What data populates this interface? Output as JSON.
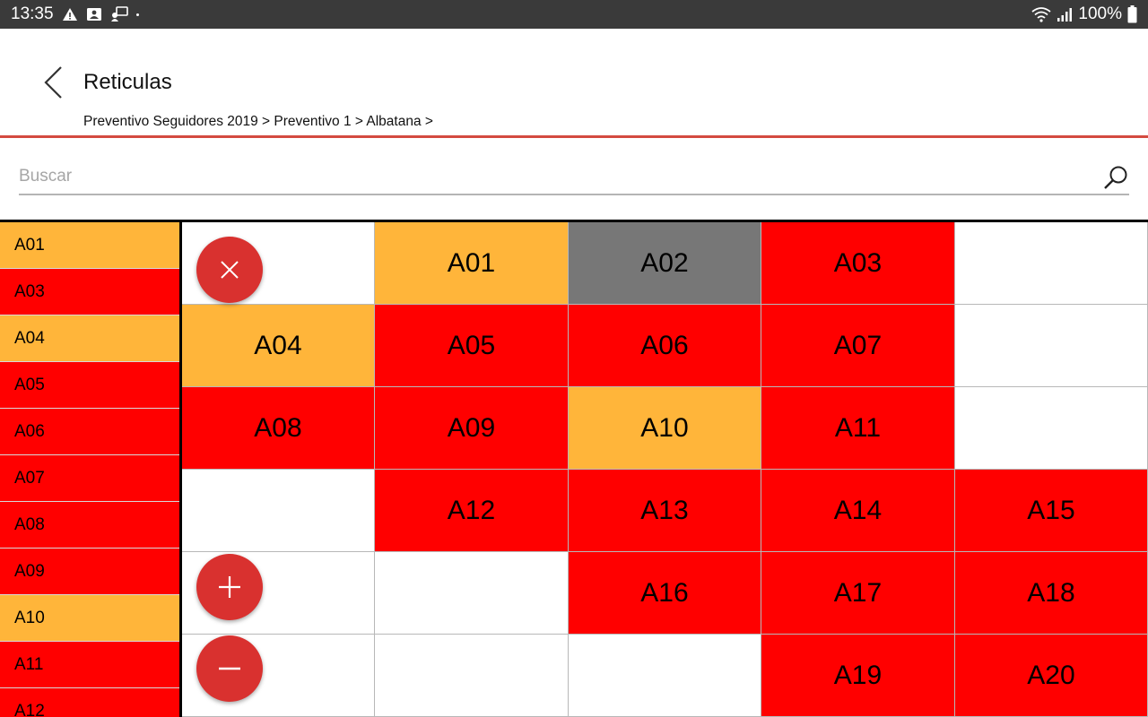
{
  "statusbar": {
    "time": "13:35",
    "battery": "100%"
  },
  "header": {
    "title": "Reticulas",
    "breadcrumb": "Preventivo Seguidores 2019 > Preventivo 1 > Albatana >"
  },
  "search": {
    "placeholder": "Buscar",
    "value": ""
  },
  "colors": {
    "orange": "#ffb53a",
    "red": "#ff0000",
    "gray": "#777777",
    "white": "#ffffff",
    "accent": "#d44a40",
    "fab": "#d9312f"
  },
  "sidebar": {
    "items": [
      {
        "label": "A01",
        "status": "orange"
      },
      {
        "label": "A03",
        "status": "red"
      },
      {
        "label": "A04",
        "status": "orange"
      },
      {
        "label": "A05",
        "status": "red"
      },
      {
        "label": "A06",
        "status": "red"
      },
      {
        "label": "A07",
        "status": "red"
      },
      {
        "label": "A08",
        "status": "red"
      },
      {
        "label": "A09",
        "status": "red"
      },
      {
        "label": "A10",
        "status": "orange"
      },
      {
        "label": "A11",
        "status": "red"
      },
      {
        "label": "A12",
        "status": "red"
      }
    ]
  },
  "grid": {
    "rows": [
      [
        {
          "label": "",
          "status": "white"
        },
        {
          "label": "A01",
          "status": "orange"
        },
        {
          "label": "A02",
          "status": "gray"
        },
        {
          "label": "A03",
          "status": "red"
        },
        {
          "label": "",
          "status": "white"
        }
      ],
      [
        {
          "label": "A04",
          "status": "orange"
        },
        {
          "label": "A05",
          "status": "red"
        },
        {
          "label": "A06",
          "status": "red"
        },
        {
          "label": "A07",
          "status": "red"
        },
        {
          "label": "",
          "status": "white"
        }
      ],
      [
        {
          "label": "A08",
          "status": "red"
        },
        {
          "label": "A09",
          "status": "red"
        },
        {
          "label": "A10",
          "status": "orange"
        },
        {
          "label": "A11",
          "status": "red"
        },
        {
          "label": "",
          "status": "white"
        }
      ],
      [
        {
          "label": "",
          "status": "white"
        },
        {
          "label": "A12",
          "status": "red"
        },
        {
          "label": "A13",
          "status": "red"
        },
        {
          "label": "A14",
          "status": "red"
        },
        {
          "label": "A15",
          "status": "red"
        }
      ],
      [
        {
          "label": "",
          "status": "white"
        },
        {
          "label": "",
          "status": "white"
        },
        {
          "label": "A16",
          "status": "red"
        },
        {
          "label": "A17",
          "status": "red"
        },
        {
          "label": "A18",
          "status": "red"
        }
      ],
      [
        {
          "label": "",
          "status": "white"
        },
        {
          "label": "",
          "status": "white"
        },
        {
          "label": "",
          "status": "white"
        },
        {
          "label": "A19",
          "status": "red"
        },
        {
          "label": "A20",
          "status": "red"
        }
      ]
    ]
  },
  "fabs": {
    "close_icon": "close-icon",
    "zoom_in_icon": "plus-icon",
    "zoom_out_icon": "minus-icon"
  }
}
